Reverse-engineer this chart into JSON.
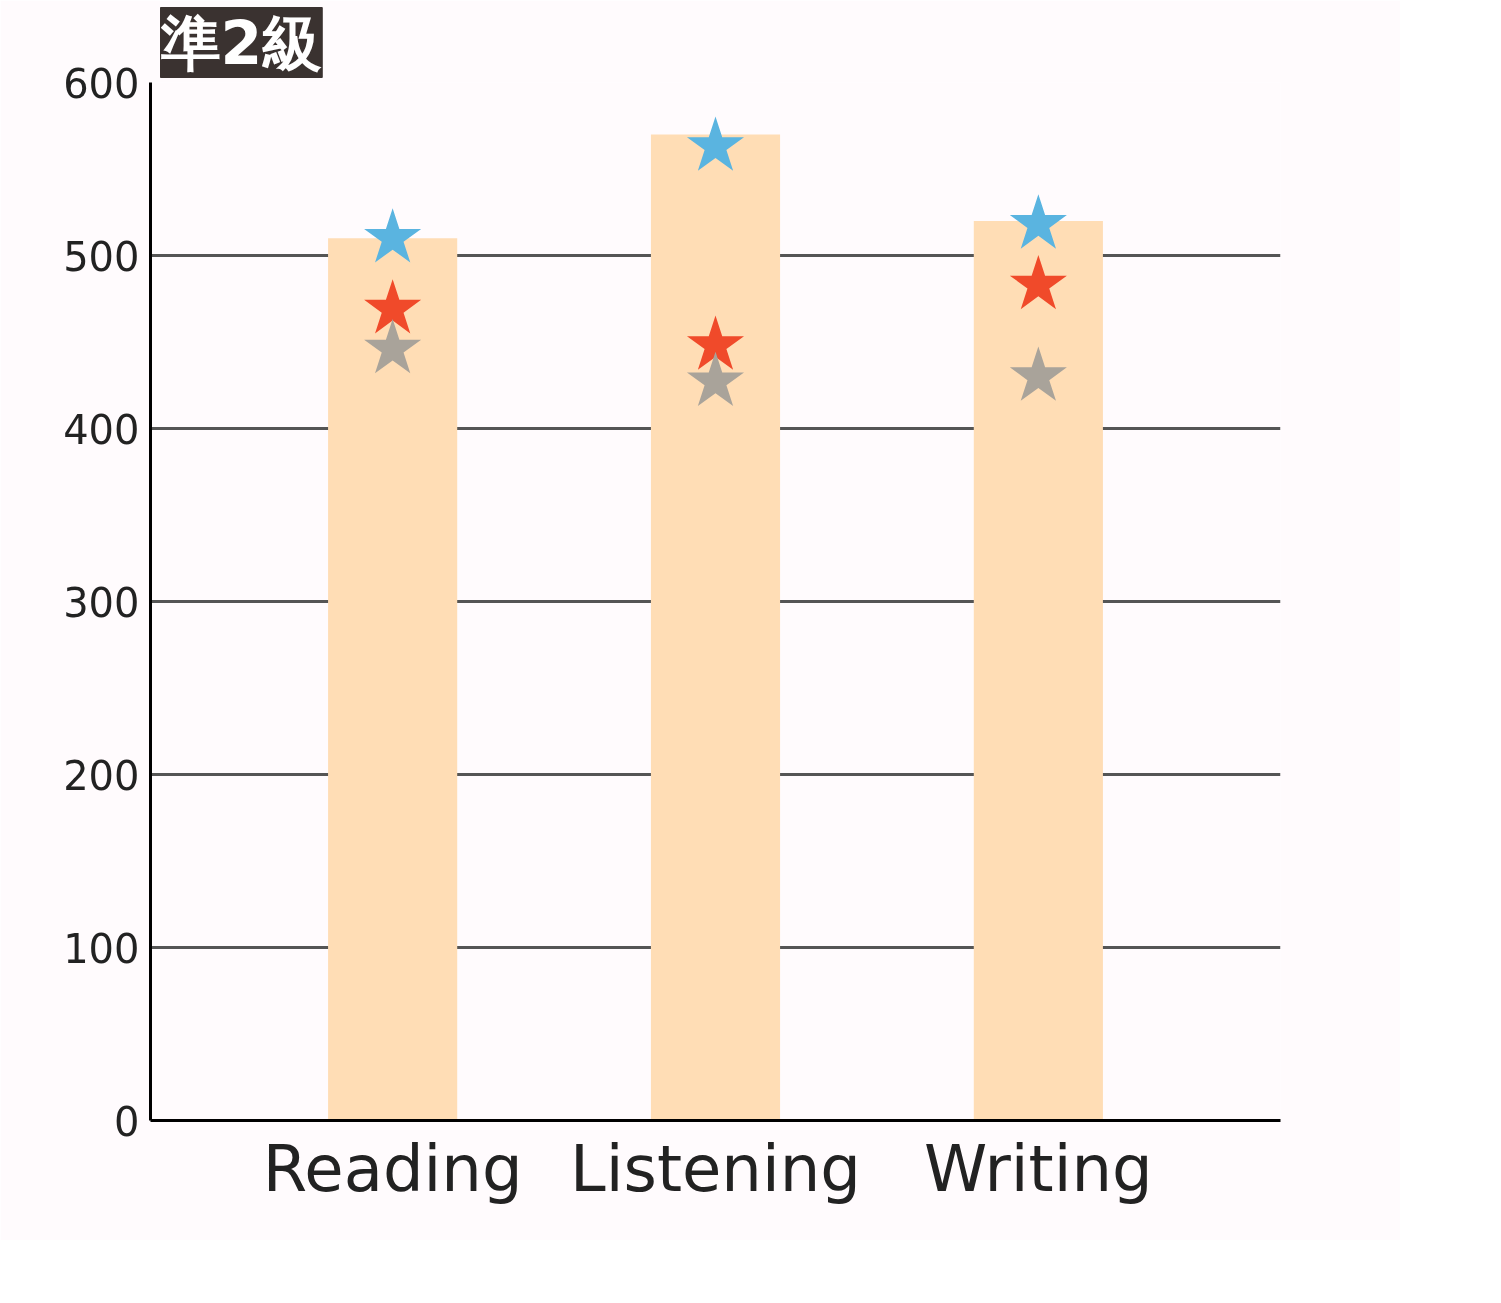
{
  "chart_data": {
    "type": "bar",
    "title": "準2級",
    "categories": [
      "Reading",
      "Listening",
      "Writing"
    ],
    "values": [
      510,
      570,
      520
    ],
    "color": "#ffddb5",
    "series": [
      {
        "type": "scatter",
        "color": "#5ab4e0",
        "x": [
          "Reading",
          "Listening",
          "Writing"
        ],
        "values": [
          510,
          563,
          518
        ],
        "marker": "star"
      },
      {
        "type": "scatter",
        "color": "#f04a2a",
        "x": [
          "Reading",
          "Listening",
          "Writing"
        ],
        "values": [
          469,
          448,
          483
        ],
        "marker": "star"
      },
      {
        "type": "scatter",
        "color": "#a9a39a",
        "x": [
          "Reading",
          "Listening",
          "Writing"
        ],
        "values": [
          446,
          427,
          430
        ],
        "marker": "star"
      }
    ],
    "ylim": [
      0,
      600
    ],
    "yticks": [
      0,
      100,
      200,
      300,
      400,
      500,
      600
    ],
    "grid": "y"
  }
}
